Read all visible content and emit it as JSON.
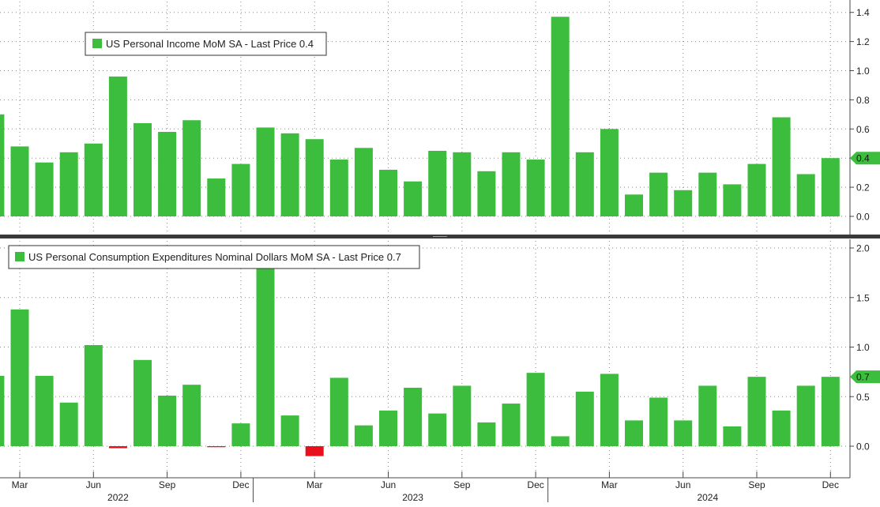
{
  "chart_data": [
    {
      "type": "bar",
      "title": "",
      "legend": "US Personal Income MoM SA - Last Price 0.4",
      "last_price_label": "0.4",
      "last_price": 0.4,
      "legend_placement": "top-left",
      "grid": true,
      "ylim": [
        -0.12,
        1.45
      ],
      "yticks": [
        0.0,
        0.2,
        0.4,
        0.6,
        0.8,
        1.0,
        1.2,
        1.4
      ],
      "ytick_labels": [
        "0.0",
        "0.2",
        "0.4",
        "0.6",
        "0.8",
        "1.0",
        "1.2",
        "1.4"
      ],
      "categories": [
        "2022-02",
        "2022-03",
        "2022-04",
        "2022-05",
        "2022-06",
        "2022-07",
        "2022-08",
        "2022-09",
        "2022-10",
        "2022-11",
        "2022-12",
        "2023-01",
        "2023-02",
        "2023-03",
        "2023-04",
        "2023-05",
        "2023-06",
        "2023-07",
        "2023-08",
        "2023-09",
        "2023-10",
        "2023-11",
        "2023-12",
        "2024-01",
        "2024-02",
        "2024-03",
        "2024-04",
        "2024-05",
        "2024-06",
        "2024-07",
        "2024-08",
        "2024-09",
        "2024-10",
        "2024-11",
        "2024-12"
      ],
      "values": [
        0.7,
        0.48,
        0.37,
        0.44,
        0.5,
        0.96,
        0.64,
        0.58,
        0.66,
        0.26,
        0.36,
        0.61,
        0.57,
        0.53,
        0.39,
        0.47,
        0.32,
        0.24,
        0.45,
        0.44,
        0.31,
        0.44,
        0.39,
        1.37,
        0.44,
        0.6,
        0.15,
        0.3,
        0.18,
        0.3,
        0.22,
        0.36,
        0.68,
        0.29,
        0.4
      ],
      "colors": {
        "positive": "#3dbd3d",
        "negative": "#e8111b"
      }
    },
    {
      "type": "bar",
      "title": "",
      "legend": "US Personal Consumption Expenditures Nominal Dollars MoM SA - Last Price 0.7",
      "last_price_label": "0.7",
      "last_price": 0.7,
      "legend_placement": "top-left",
      "grid": true,
      "ylim": [
        -0.3,
        2.05
      ],
      "yticks": [
        0.0,
        0.5,
        1.0,
        1.5,
        2.0
      ],
      "ytick_labels": [
        "0.0",
        "0.5",
        "1.0",
        "1.5",
        "2.0"
      ],
      "categories": [
        "2022-02",
        "2022-03",
        "2022-04",
        "2022-05",
        "2022-06",
        "2022-07",
        "2022-08",
        "2022-09",
        "2022-10",
        "2022-11",
        "2022-12",
        "2023-01",
        "2023-02",
        "2023-03",
        "2023-04",
        "2023-05",
        "2023-06",
        "2023-07",
        "2023-08",
        "2023-09",
        "2023-10",
        "2023-11",
        "2023-12",
        "2024-01",
        "2024-02",
        "2024-03",
        "2024-04",
        "2024-05",
        "2024-06",
        "2024-07",
        "2024-08",
        "2024-09",
        "2024-10",
        "2024-11",
        "2024-12"
      ],
      "values": [
        0.71,
        1.38,
        0.71,
        0.44,
        1.02,
        -0.02,
        0.87,
        0.51,
        0.62,
        -0.01,
        0.23,
        1.8,
        0.31,
        -0.1,
        0.69,
        0.21,
        0.36,
        0.59,
        0.33,
        0.61,
        0.24,
        0.43,
        0.74,
        0.1,
        0.55,
        0.73,
        0.26,
        0.49,
        0.26,
        0.61,
        0.2,
        0.7,
        0.36,
        0.61,
        0.7
      ],
      "colors": {
        "positive": "#3dbd3d",
        "negative": "#e8111b"
      }
    }
  ],
  "x_axis": {
    "month_labels": [
      "Mar",
      "Jun",
      "Sep",
      "Dec",
      "Mar",
      "Jun",
      "Sep",
      "Dec",
      "Mar",
      "Jun",
      "Sep",
      "Dec"
    ],
    "month_label_indices": [
      1,
      4,
      7,
      10,
      13,
      16,
      19,
      22,
      25,
      28,
      31,
      34
    ],
    "year_labels": [
      "2022",
      "2023",
      "2024"
    ],
    "year_label_indices": [
      5,
      17,
      29
    ],
    "year_divider_indices": [
      10.5,
      22.5
    ]
  }
}
